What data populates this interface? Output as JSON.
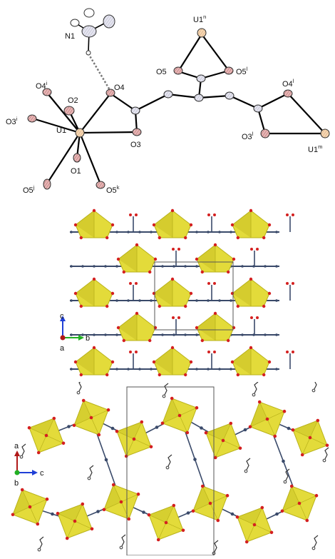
{
  "atom_labels": {
    "N1": {
      "base": "N1",
      "sup": ""
    },
    "O2": {
      "base": "O2",
      "sup": ""
    },
    "O4": {
      "base": "O4",
      "sup": ""
    },
    "O4i": {
      "base": "O4",
      "sup": "i"
    },
    "O3i": {
      "base": "O3",
      "sup": "i"
    },
    "U1": {
      "base": "U1",
      "sup": ""
    },
    "O3": {
      "base": "O3",
      "sup": ""
    },
    "O1": {
      "base": "O1",
      "sup": ""
    },
    "O5j": {
      "base": "O5",
      "sup": "j"
    },
    "O5k": {
      "base": "O5",
      "sup": "k"
    },
    "U1n": {
      "base": "U1",
      "sup": "n"
    },
    "O5": {
      "base": "O5",
      "sup": ""
    },
    "O5l": {
      "base": "O5",
      "sup": "l"
    },
    "O4l": {
      "base": "O4",
      "sup": "l"
    },
    "O3l": {
      "base": "O3",
      "sup": "l"
    },
    "U1m": {
      "base": "U1",
      "sup": "m"
    }
  },
  "axes_mid": {
    "up": "c",
    "right": "b",
    "origin": "a"
  },
  "axes_bot": {
    "up": "a",
    "right": "c",
    "origin": "b"
  },
  "colors": {
    "uranium": "#f2c79a",
    "oxygen": "#d9a0a0",
    "carbon": "#d9d9e6",
    "polyhedron": "#e3db3a",
    "polyhedron_dark": "#b9b21a",
    "vertex": "#d42020",
    "linker": "#3a4a6a",
    "axis_c": "#1f3fd6",
    "axis_b": "#22b022",
    "axis_a": "#b01818"
  }
}
